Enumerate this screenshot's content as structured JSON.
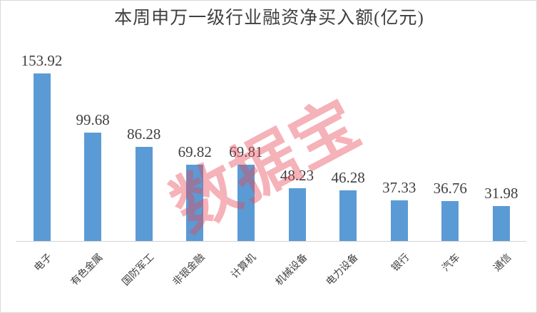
{
  "window": {
    "background": "#FFFFFF",
    "border_color": "#D9D9D9"
  },
  "watermark": {
    "text": "数据宝",
    "color_rgba": "rgba(232, 72, 88, 0.42)"
  },
  "chart_data": {
    "type": "bar",
    "title": "本周申万一级行业融资净买入额(亿元)",
    "categories": [
      "电子",
      "有色金属",
      "国防军工",
      "非银金融",
      "计算机",
      "机械设备",
      "电力设备",
      "银行",
      "汽车",
      "通信"
    ],
    "values": [
      153.92,
      99.68,
      86.28,
      69.82,
      69.81,
      48.23,
      46.28,
      37.33,
      36.76,
      31.98
    ],
    "value_labels": [
      "153.92",
      "99.68",
      "86.28",
      "69.82",
      "69.81",
      "48.23",
      "46.28",
      "37.33",
      "36.76",
      "31.98"
    ],
    "bar_color": "#5B9BD5",
    "text_color": "#3F3F3F",
    "category_text_color": "#404040",
    "axis_line_color": "#D3D3D3",
    "xlabel": "",
    "ylabel": "",
    "ylim": [
      0,
      160
    ],
    "grid": false,
    "legend": false,
    "data_labels": "above-bars",
    "category_label_rotation_deg": 45
  }
}
